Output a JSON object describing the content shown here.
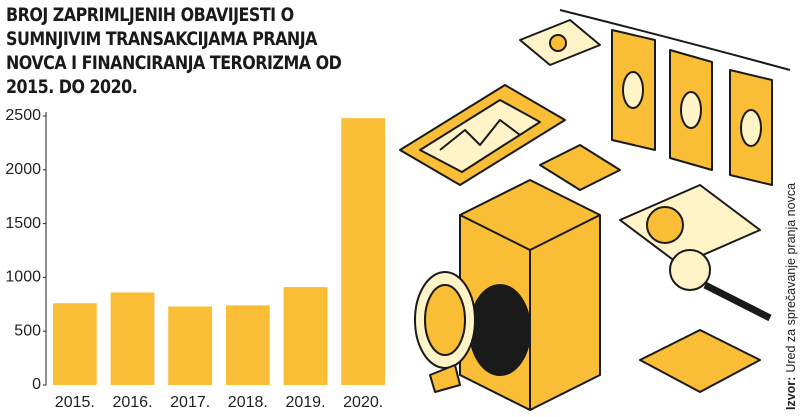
{
  "chart_data": {
    "type": "bar",
    "title": "BROJ ZAPRIMLJENIH OBAVIJESTI O SUMNJIVIM TRANSAKCIJAMA PRANJA NOVCA I FINANCIRANJA TERORIZMA OD 2015. DO 2020.",
    "categories": [
      "2015.",
      "2016.",
      "2017.",
      "2018.",
      "2019.",
      "2020."
    ],
    "values": [
      760,
      860,
      730,
      740,
      910,
      2480
    ],
    "color": "#f9be35",
    "ylim": [
      0,
      2500
    ],
    "yticks": [
      0,
      500,
      1000,
      1500,
      2000,
      2500
    ],
    "grid": false,
    "source_label": "Izvor:",
    "source": "Ured za sprečavanje pranja novca"
  }
}
